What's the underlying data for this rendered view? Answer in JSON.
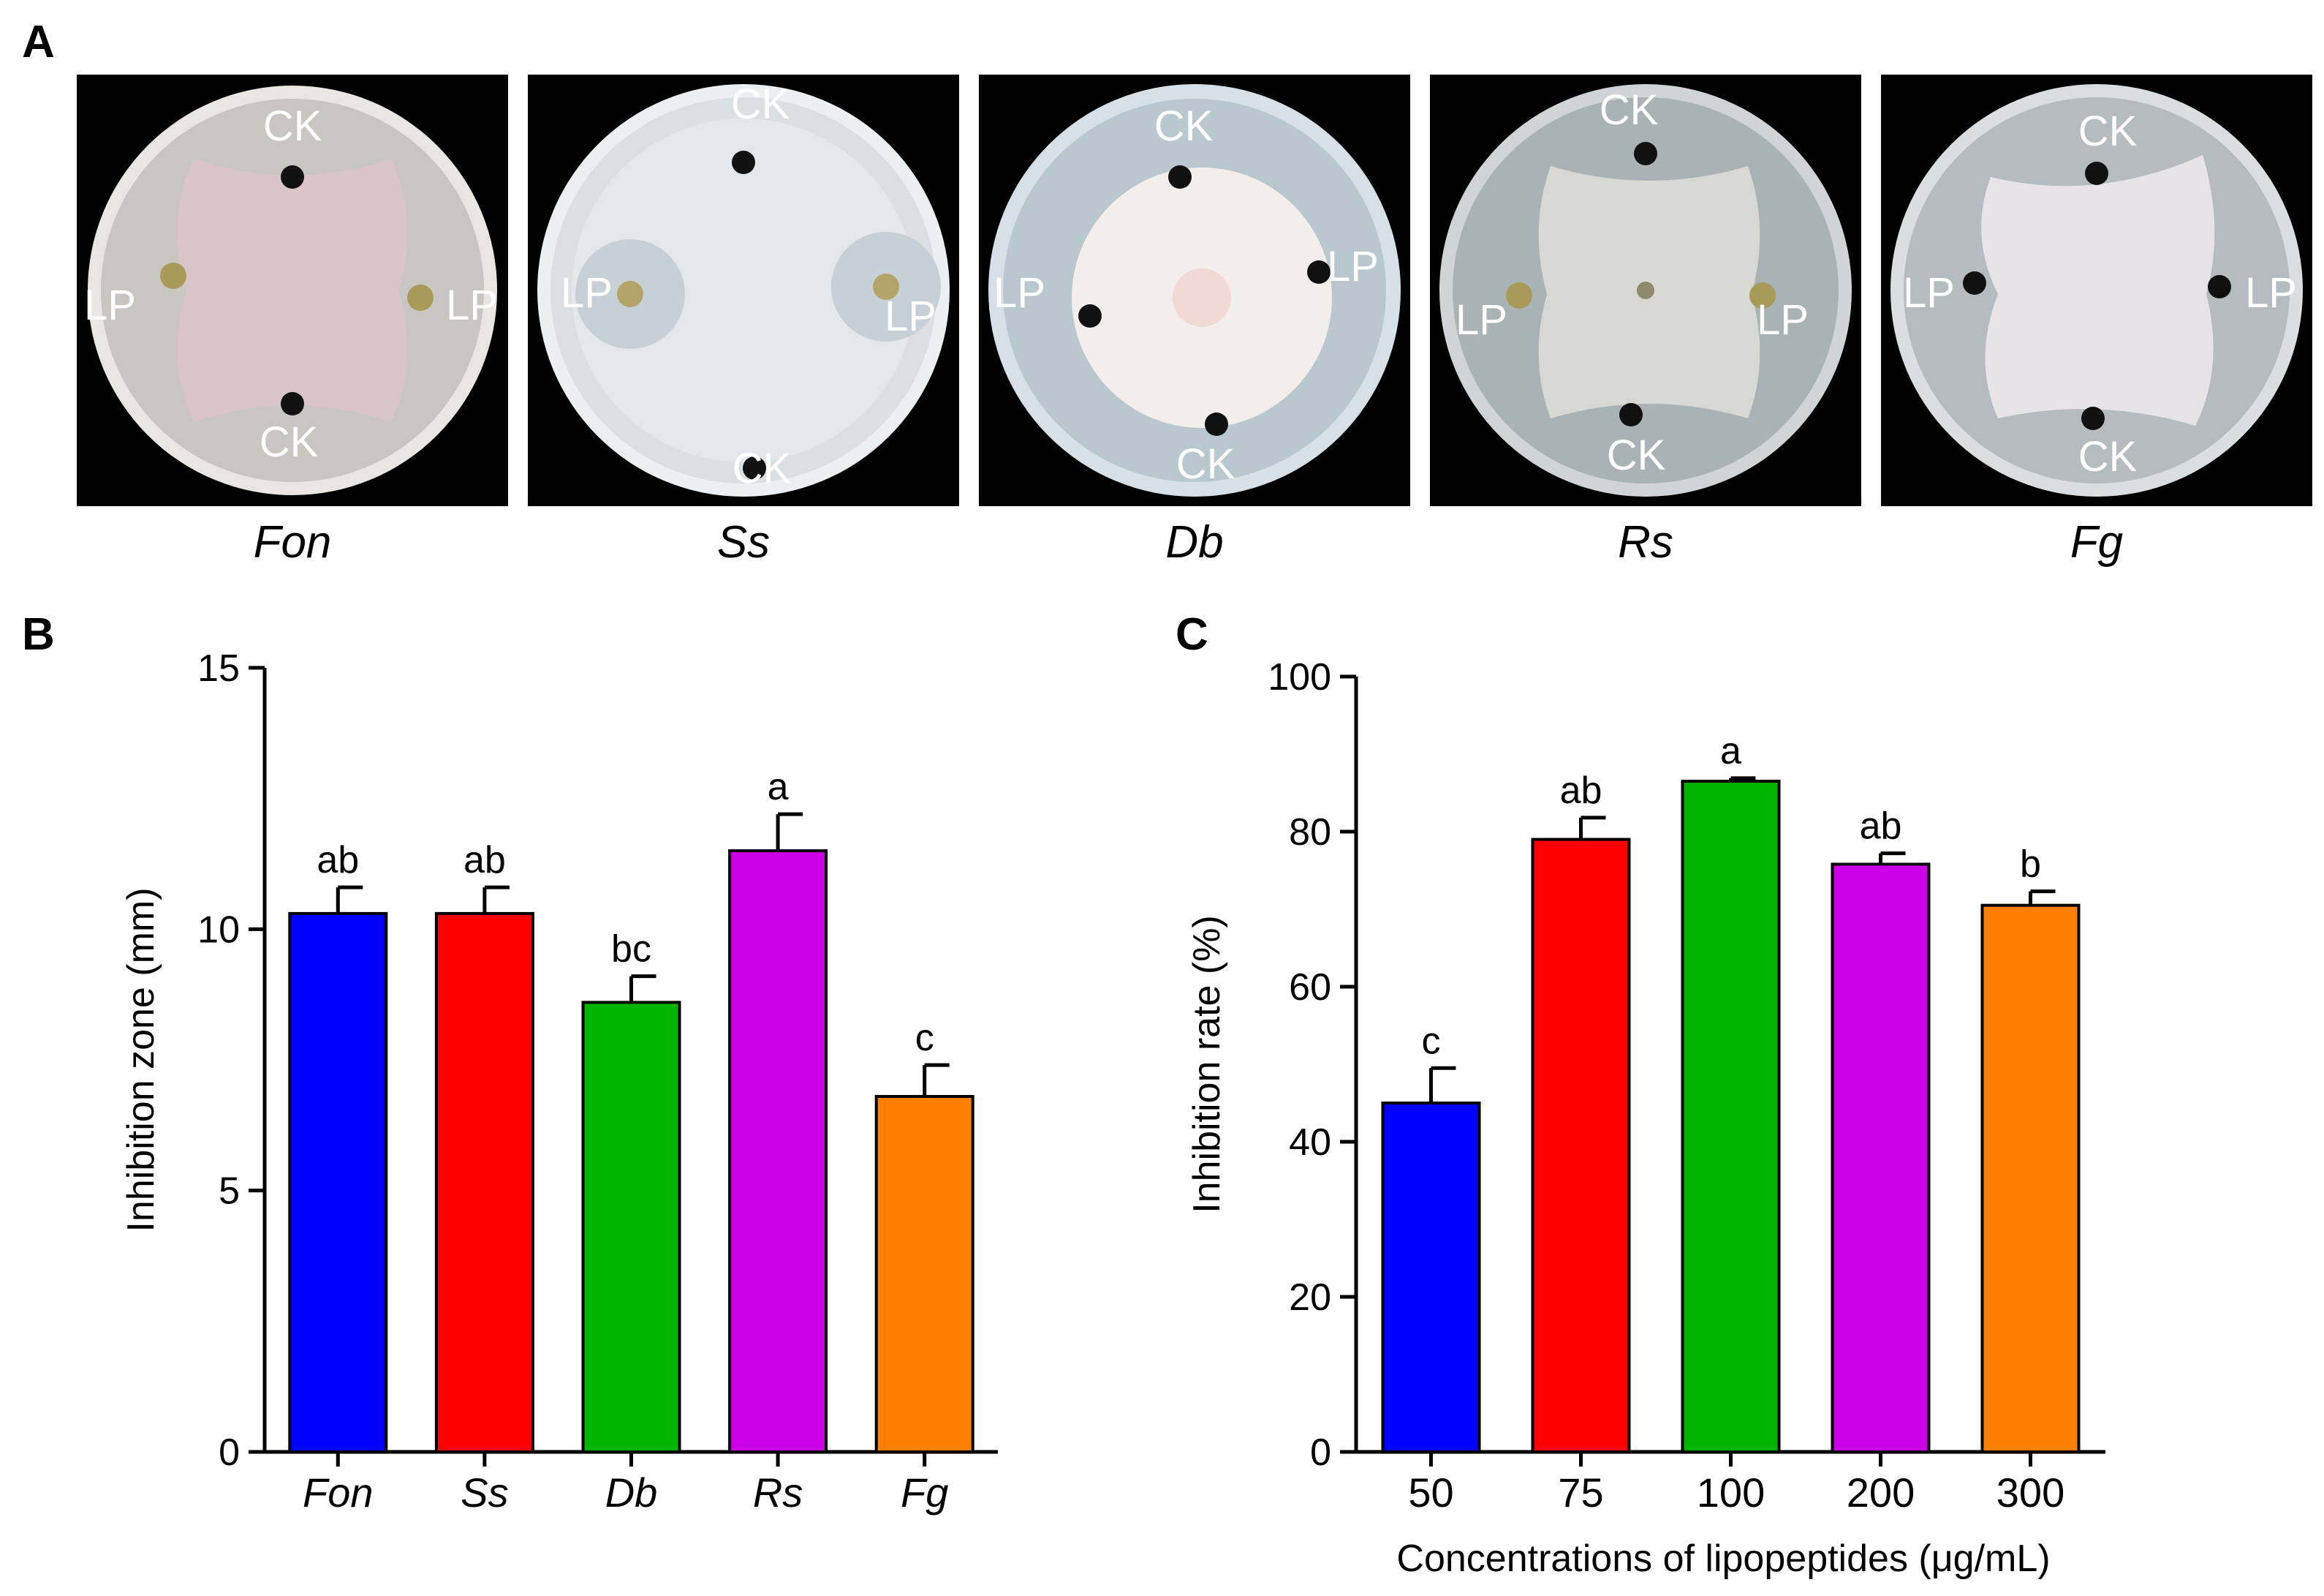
{
  "panels": {
    "A": {
      "letter": "A",
      "plates": [
        {
          "caption": "Fon",
          "labels": {
            "top": "CK",
            "bottom": "CK",
            "left": "LP",
            "right": "LP"
          },
          "colony_color": "#d9c4c8",
          "agar_color": "#c9c5c0"
        },
        {
          "caption": "Ss",
          "labels": {
            "top": "CK",
            "bottom": "CK",
            "left": "LP",
            "right": "LP"
          },
          "colony_color": "#e3e6ea",
          "agar_color": "#dadfe3"
        },
        {
          "caption": "Db",
          "labels": {
            "top": "CK",
            "bottom": "CK",
            "left": "LP",
            "right": "LP"
          },
          "colony_color": "#f3eeec",
          "agar_color": "#b9c7cf"
        },
        {
          "caption": "Rs",
          "labels": {
            "top": "CK",
            "bottom": "CK",
            "left": "LP",
            "right": "LP"
          },
          "colony_color": "#d7d7d3",
          "agar_color": "#a9b2b5"
        },
        {
          "caption": "Fg",
          "labels": {
            "top": "CK",
            "bottom": "CK",
            "left": "LP",
            "right": "LP"
          },
          "colony_color": "#e6e4e6",
          "agar_color": "#b5bcc0"
        }
      ]
    },
    "B": {
      "letter": "B"
    },
    "C": {
      "letter": "C"
    }
  },
  "chart_data": [
    {
      "id": "B",
      "type": "bar",
      "categories": [
        "Fon",
        "Ss",
        "Db",
        "Rs",
        "Fg"
      ],
      "categories_italic": true,
      "values": [
        10.3,
        10.3,
        8.6,
        11.5,
        6.8
      ],
      "errors": [
        0.5,
        0.5,
        0.5,
        0.7,
        0.6
      ],
      "significance": [
        "ab",
        "ab",
        "bc",
        "a",
        "c"
      ],
      "colors": [
        "#0000ff",
        "#ff0000",
        "#00b400",
        "#cc00e6",
        "#ff8000"
      ],
      "ylabel": "Inhibition zone (mm)",
      "xlabel": "",
      "ylim": [
        0,
        15
      ],
      "yticks": [
        0,
        5,
        10,
        15
      ]
    },
    {
      "id": "C",
      "type": "bar",
      "categories": [
        "50",
        "75",
        "100",
        "200",
        "300"
      ],
      "categories_italic": false,
      "values": [
        45,
        79,
        86.5,
        75.8,
        70.5
      ],
      "errors": [
        4.5,
        2.8,
        0.4,
        1.4,
        1.8
      ],
      "significance": [
        "c",
        "ab",
        "a",
        "ab",
        "b"
      ],
      "colors": [
        "#0000ff",
        "#ff0000",
        "#00b400",
        "#cc00e6",
        "#ff8000"
      ],
      "ylabel": "Inhibition rate (%)",
      "xlabel": "Concentrations of lipopeptides (μg/mL)",
      "ylim": [
        0,
        100
      ],
      "yticks": [
        0,
        20,
        40,
        60,
        80,
        100
      ]
    }
  ]
}
